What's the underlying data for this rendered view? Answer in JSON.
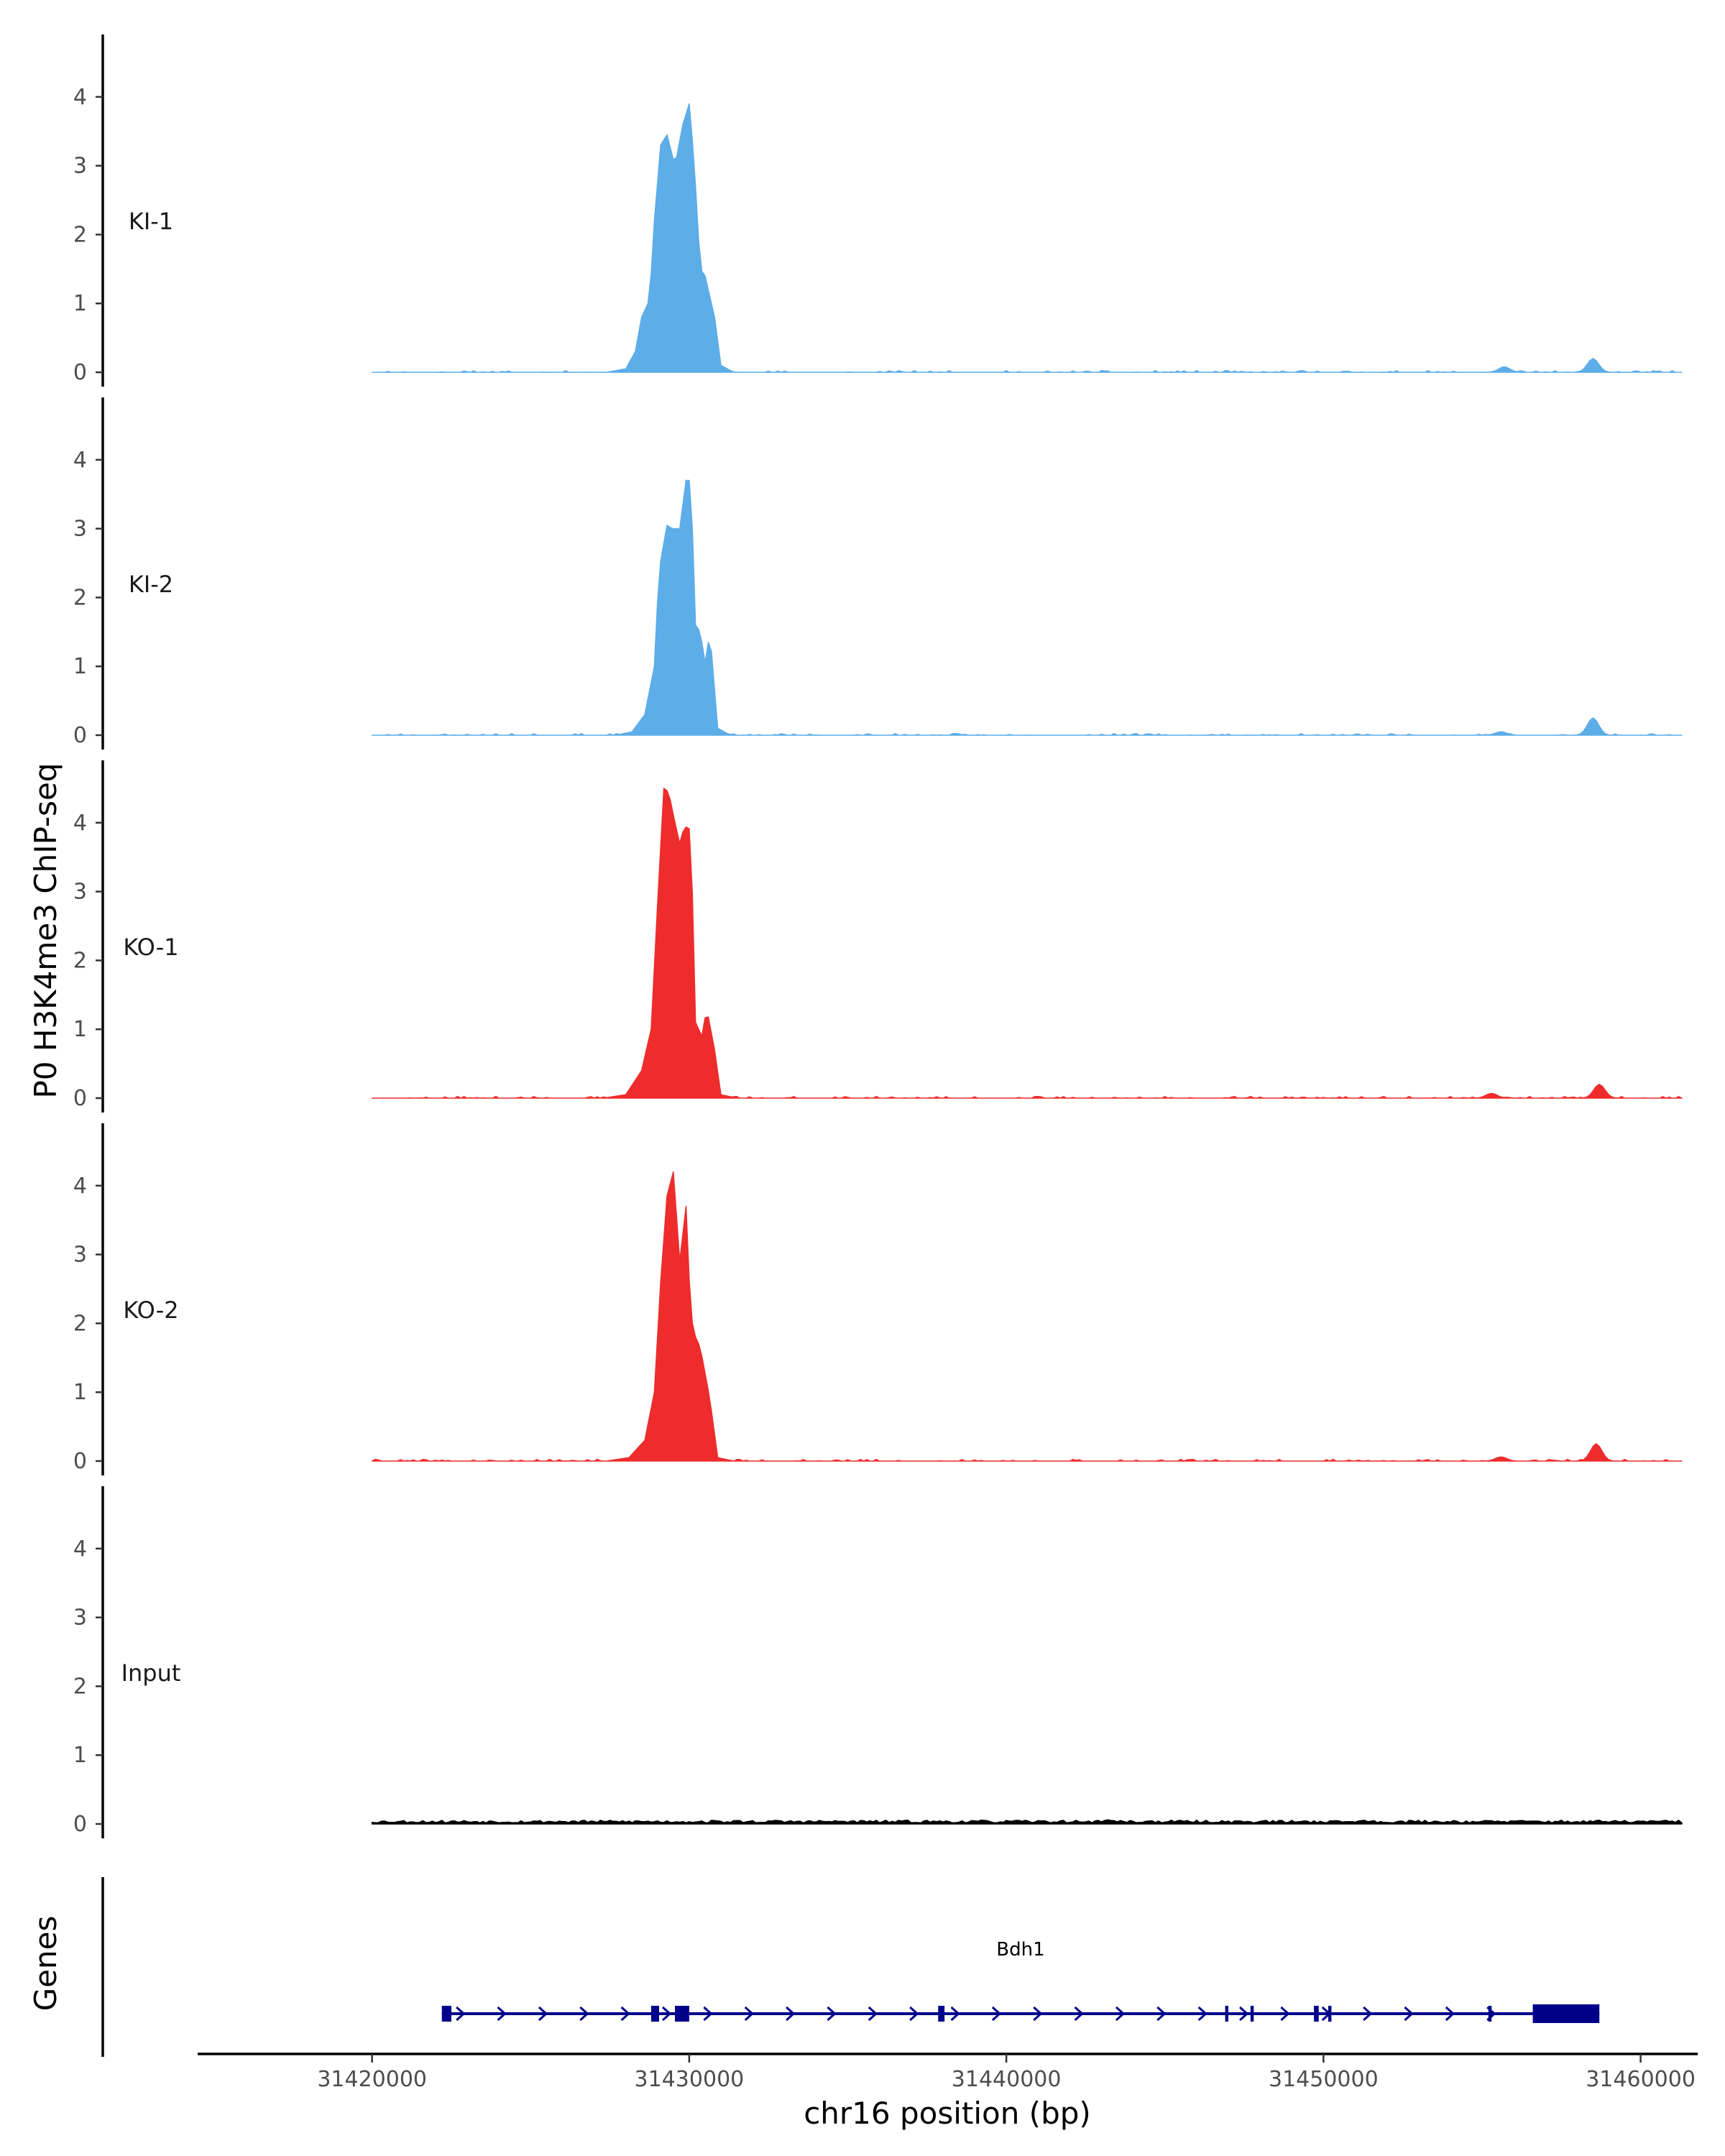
{
  "chart_data": {
    "type": "area",
    "ylabel": "P0 H3K4me3 ChIP-seq",
    "xlabel": "chr16 position (bp)",
    "genes_label": "Genes",
    "ylim": [
      0,
      4.7
    ],
    "y_ticks": [
      "0",
      "1",
      "2",
      "3",
      "4"
    ],
    "xlim": [
      31414500,
      31461800
    ],
    "x_ticks": [
      {
        "value": 31420000,
        "label": "31420000"
      },
      {
        "value": 31430000,
        "label": "31430000"
      },
      {
        "value": 31440000,
        "label": "31440000"
      },
      {
        "value": 31450000,
        "label": "31450000"
      },
      {
        "value": 31460000,
        "label": "31460000"
      }
    ],
    "data_range": [
      31420000,
      31461300
    ],
    "colors": {
      "KI": "#5dade8",
      "KO": "#ee2c2c",
      "Input": "#000000",
      "Gene": "#00008b"
    },
    "tracks": [
      {
        "name": "KI-1",
        "color": "#5dade8",
        "peak": [
          [
            31427400,
            0
          ],
          [
            31428000,
            0.05
          ],
          [
            31428300,
            0.3
          ],
          [
            31428500,
            0.8
          ],
          [
            31428750,
            1.05
          ],
          [
            31428900,
            2.2
          ],
          [
            31429100,
            3.3
          ],
          [
            31429300,
            3.45
          ],
          [
            31429550,
            3.0
          ],
          [
            31429800,
            3.6
          ],
          [
            31430000,
            3.9
          ],
          [
            31430150,
            3.1
          ],
          [
            31430350,
            1.5
          ],
          [
            31430500,
            1.4
          ],
          [
            31430800,
            0.8
          ],
          [
            31431000,
            0.1
          ],
          [
            31431400,
            0
          ]
        ],
        "bumps": [
          [
            31455700,
            0.08
          ],
          [
            31458500,
            0.2
          ]
        ],
        "noise_seed": 11
      },
      {
        "name": "KI-2",
        "color": "#5dade8",
        "peak": [
          [
            31427700,
            0
          ],
          [
            31428200,
            0.05
          ],
          [
            31428600,
            0.3
          ],
          [
            31428900,
            1.0
          ],
          [
            31429050,
            2.4
          ],
          [
            31429300,
            3.05
          ],
          [
            31429450,
            3.0
          ],
          [
            31429700,
            3.0
          ],
          [
            31429900,
            3.7
          ],
          [
            31430050,
            3.7
          ],
          [
            31430200,
            1.6
          ],
          [
            31430350,
            1.5
          ],
          [
            31430500,
            1.05
          ],
          [
            31430650,
            1.5
          ],
          [
            31430900,
            0.1
          ],
          [
            31431300,
            0
          ]
        ],
        "bumps": [
          [
            31455600,
            0.05
          ],
          [
            31458500,
            0.25
          ]
        ],
        "noise_seed": 23
      },
      {
        "name": "KO-1",
        "color": "#ee2c2c",
        "peak": [
          [
            31427300,
            0
          ],
          [
            31428000,
            0.05
          ],
          [
            31428500,
            0.4
          ],
          [
            31428800,
            1.0
          ],
          [
            31429000,
            2.8
          ],
          [
            31429200,
            4.5
          ],
          [
            31429350,
            4.45
          ],
          [
            31429550,
            4.0
          ],
          [
            31429700,
            3.7
          ],
          [
            31429850,
            3.95
          ],
          [
            31430050,
            3.9
          ],
          [
            31430200,
            1.1
          ],
          [
            31430400,
            0.9
          ],
          [
            31430550,
            1.3
          ],
          [
            31430800,
            0.7
          ],
          [
            31431000,
            0.05
          ],
          [
            31431500,
            0
          ]
        ],
        "bumps": [
          [
            31455300,
            0.07
          ],
          [
            31458700,
            0.2
          ]
        ],
        "noise_seed": 37
      },
      {
        "name": "KO-2",
        "color": "#ee2c2c",
        "peak": [
          [
            31427400,
            0
          ],
          [
            31428100,
            0.05
          ],
          [
            31428600,
            0.3
          ],
          [
            31428900,
            1.0
          ],
          [
            31429100,
            2.6
          ],
          [
            31429300,
            3.85
          ],
          [
            31429500,
            4.2
          ],
          [
            31429700,
            2.9
          ],
          [
            31429900,
            3.7
          ],
          [
            31430050,
            2.1
          ],
          [
            31430200,
            1.8
          ],
          [
            31430350,
            1.65
          ],
          [
            31430650,
            0.9
          ],
          [
            31430900,
            0.05
          ],
          [
            31431400,
            0
          ]
        ],
        "bumps": [
          [
            31455600,
            0.06
          ],
          [
            31458600,
            0.25
          ]
        ],
        "noise_seed": 41
      },
      {
        "name": "Input",
        "color": "#000000",
        "peak": [],
        "bumps": [
          [
            31443200,
            0.06
          ],
          [
            31451200,
            0.05
          ]
        ],
        "noise_seed": 53
      }
    ],
    "gene": {
      "name": "Bdh1",
      "start": 31422200,
      "end": 31458700,
      "strand": "+",
      "exons": [
        [
          31422200,
          31422500
        ],
        [
          31428800,
          31429050
        ],
        [
          31429550,
          31430000
        ],
        [
          31437850,
          31438050
        ],
        [
          31446900,
          31447000
        ],
        [
          31447700,
          31447800
        ],
        [
          31449700,
          31449850
        ],
        [
          31450150,
          31450250
        ],
        [
          31455200,
          31455300
        ],
        [
          31456600,
          31458700
        ]
      ]
    }
  }
}
